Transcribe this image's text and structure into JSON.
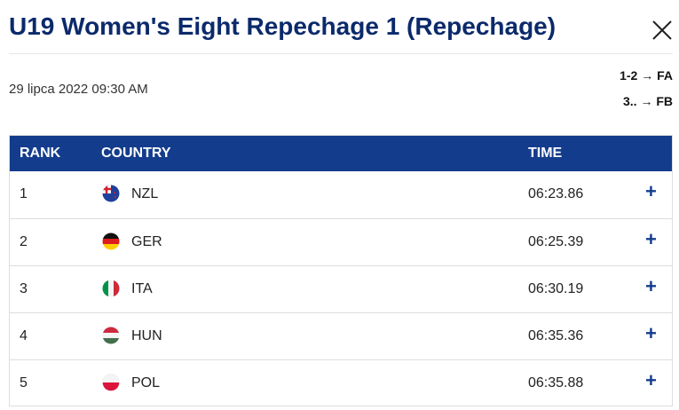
{
  "header": {
    "title": "U19 Women's Eight Repechage 1 (Repechage)",
    "date": "29 lipca 2022 09:30 AM",
    "progression": [
      "1-2 → FA",
      "3.. → FB"
    ]
  },
  "table": {
    "columns": [
      "RANK",
      "COUNTRY",
      "TIME"
    ],
    "rows": [
      [
        "1",
        "NZL",
        "06:23.86"
      ],
      [
        "2",
        "GER",
        "06:25.39"
      ],
      [
        "3",
        "ITA",
        "06:30.19"
      ],
      [
        "4",
        "HUN",
        "06:35.36"
      ],
      [
        "5",
        "POL",
        "06:35.88"
      ]
    ]
  }
}
